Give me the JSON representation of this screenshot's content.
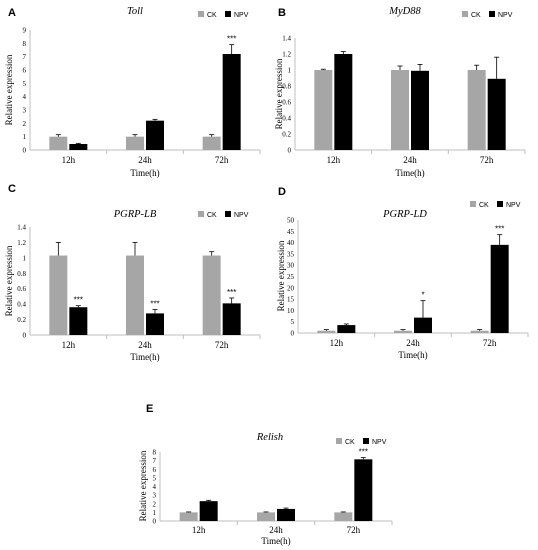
{
  "colors": {
    "ck": "#a6a6a6",
    "npv": "#000000",
    "axis": "#bfbfbf"
  },
  "legend": {
    "ck": "CK",
    "npv": "NPV"
  },
  "chart_data": [
    {
      "panel": "A",
      "title": "Toll",
      "type": "bar",
      "categories": [
        "12h",
        "24h",
        "72h"
      ],
      "xlabel": "Time(h)",
      "ylabel": "Relative expression",
      "ylim": [
        0,
        9
      ],
      "yticks": [
        0,
        1,
        2,
        3,
        4,
        5,
        6,
        7,
        8,
        9
      ],
      "series": [
        {
          "name": "CK",
          "values": [
            1.0,
            1.0,
            1.0
          ],
          "errors": [
            0.15,
            0.15,
            0.15
          ]
        },
        {
          "name": "NPV",
          "values": [
            0.45,
            2.2,
            7.2
          ],
          "errors": [
            0.05,
            0.1,
            0.7
          ]
        }
      ],
      "significance": [
        "",
        "",
        "***"
      ]
    },
    {
      "panel": "B",
      "title": "MyD88",
      "type": "bar",
      "categories": [
        "12h",
        "24h",
        "72h"
      ],
      "xlabel": "Time(h)",
      "ylabel": "Relative expression",
      "ylim": [
        0,
        1.4
      ],
      "yticks": [
        0,
        0.2,
        0.4,
        0.6,
        0.8,
        1,
        1.2,
        1.4
      ],
      "series": [
        {
          "name": "CK",
          "values": [
            1.0,
            1.0,
            1.0
          ],
          "errors": [
            0.01,
            0.05,
            0.06
          ]
        },
        {
          "name": "NPV",
          "values": [
            1.2,
            0.99,
            0.89
          ],
          "errors": [
            0.03,
            0.08,
            0.27
          ]
        }
      ],
      "significance": [
        "",
        "",
        ""
      ]
    },
    {
      "panel": "C",
      "title": "PGRP-LB",
      "type": "bar",
      "categories": [
        "12h",
        "24h",
        "72h"
      ],
      "xlabel": "Time(h)",
      "ylabel": "Relative expression",
      "ylim": [
        0,
        1.4
      ],
      "yticks": [
        0,
        0.2,
        0.4,
        0.6,
        0.8,
        1,
        1.2,
        1.4
      ],
      "series": [
        {
          "name": "CK",
          "values": [
            1.03,
            1.03,
            1.03
          ],
          "errors": [
            0.17,
            0.17,
            0.05
          ]
        },
        {
          "name": "NPV",
          "values": [
            0.36,
            0.28,
            0.41
          ],
          "errors": [
            0.02,
            0.05,
            0.07
          ]
        }
      ],
      "significance": [
        "***",
        "***",
        "***"
      ]
    },
    {
      "panel": "D",
      "title": "PGRP-LD",
      "type": "bar",
      "categories": [
        "12h",
        "24h",
        "72h"
      ],
      "xlabel": "Time(h)",
      "ylabel": "Relative expression",
      "ylim": [
        0,
        50
      ],
      "yticks": [
        0,
        5,
        10,
        15,
        20,
        25,
        30,
        35,
        40,
        45,
        50
      ],
      "series": [
        {
          "name": "CK",
          "values": [
            1.0,
            1.0,
            1.0
          ],
          "errors": [
            0.5,
            0.5,
            0.5
          ]
        },
        {
          "name": "NPV",
          "values": [
            3.5,
            6.8,
            39.0
          ],
          "errors": [
            0.5,
            7.5,
            4.5
          ]
        }
      ],
      "significance": [
        "",
        "*",
        "***"
      ]
    },
    {
      "panel": "E",
      "title": "Relish",
      "type": "bar",
      "categories": [
        "12h",
        "24h",
        "72h"
      ],
      "xlabel": "Time(h)",
      "ylabel": "Relative expression",
      "ylim": [
        0,
        8
      ],
      "yticks": [
        0,
        1,
        2,
        3,
        4,
        5,
        6,
        7,
        8
      ],
      "series": [
        {
          "name": "CK",
          "values": [
            1.0,
            1.0,
            1.0
          ],
          "errors": [
            0.05,
            0.05,
            0.05
          ]
        },
        {
          "name": "NPV",
          "values": [
            2.3,
            1.4,
            7.15
          ],
          "errors": [
            0.1,
            0.1,
            0.2
          ]
        }
      ],
      "significance": [
        "",
        "",
        "***"
      ]
    }
  ]
}
